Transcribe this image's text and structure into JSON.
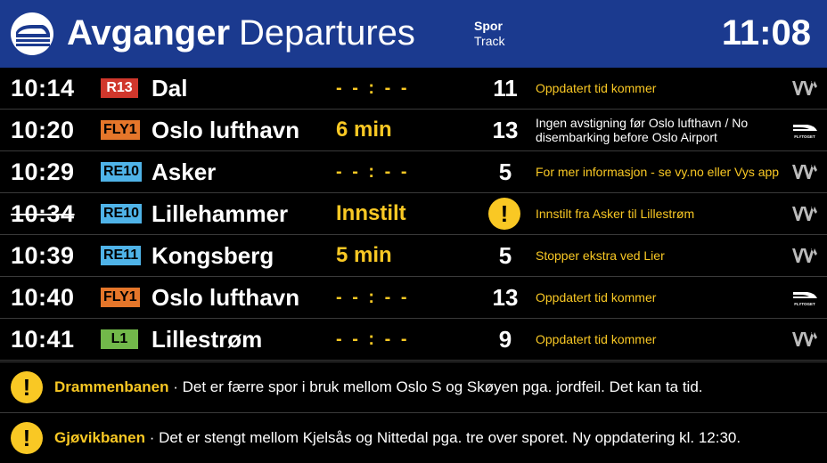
{
  "header": {
    "title_no": "Avganger",
    "title_en": "Departures",
    "spor_no": "Spor",
    "spor_en": "Track",
    "clock": "11:08",
    "bg_color": "#1b3a8f"
  },
  "departures": [
    {
      "time": "10:14",
      "cancelled": false,
      "line": "R13",
      "line_color": "#d0372c",
      "destination": "Dal",
      "departure": "- - : - -",
      "track": "11",
      "message": "Oppdatert tid kommer",
      "operator": "vy-icon"
    },
    {
      "time": "10:20",
      "cancelled": false,
      "line": "FLY1",
      "line_color": "#e5762a",
      "destination": "Oslo lufthavn",
      "departure": "6 min",
      "track": "13",
      "message": "Ingen avstigning før Oslo lufthavn / No disembarking before Oslo Airport",
      "operator": "flytoget-icon"
    },
    {
      "time": "10:29",
      "cancelled": false,
      "line": "RE10",
      "line_color": "#4fb3e8",
      "destination": "Asker",
      "departure": "- - : - -",
      "track": "5",
      "message": "For mer informasjon - se vy.no eller Vys app",
      "operator": "vy-icon"
    },
    {
      "time": "10:34",
      "cancelled": true,
      "line": "RE10",
      "line_color": "#4fb3e8",
      "destination": "Lillehammer",
      "departure": "Innstilt",
      "track": "!",
      "message": "Innstilt fra Asker til Lillestrøm",
      "operator": "vy-icon"
    },
    {
      "time": "10:39",
      "cancelled": false,
      "line": "RE11",
      "line_color": "#4fb3e8",
      "destination": "Kongsberg",
      "departure": "5 min",
      "track": "5",
      "message": "Stopper ekstra ved Lier",
      "operator": "vy-icon"
    },
    {
      "time": "10:40",
      "cancelled": false,
      "line": "FLY1",
      "line_color": "#e5762a",
      "destination": "Oslo lufthavn",
      "departure": "- - : - -",
      "track": "13",
      "message": "Oppdatert tid kommer",
      "operator": "flytoget-icon"
    },
    {
      "time": "10:41",
      "cancelled": false,
      "line": "L1",
      "line_color": "#72b84a",
      "destination": "Lillestrøm",
      "departure": "- - : - -",
      "track": "9",
      "message": "Oppdatert tid kommer",
      "operator": "vy-icon"
    }
  ],
  "notices": [
    {
      "line": "Drammenbanen",
      "text": " · Det er færre spor i bruk mellom Oslo S og Skøyen pga. jordfeil. Det kan ta tid."
    },
    {
      "line": "Gjøvikbanen",
      "text": " · Det er stengt mellom Kjelsås og Nittedal pga. tre over sporet. Ny oppdatering kl. 12:30."
    }
  ],
  "colors": {
    "accent_yellow": "#f9c824",
    "background": "#000000"
  },
  "flytoget_label": "FLYTOGET",
  "warning_glyph": "!"
}
